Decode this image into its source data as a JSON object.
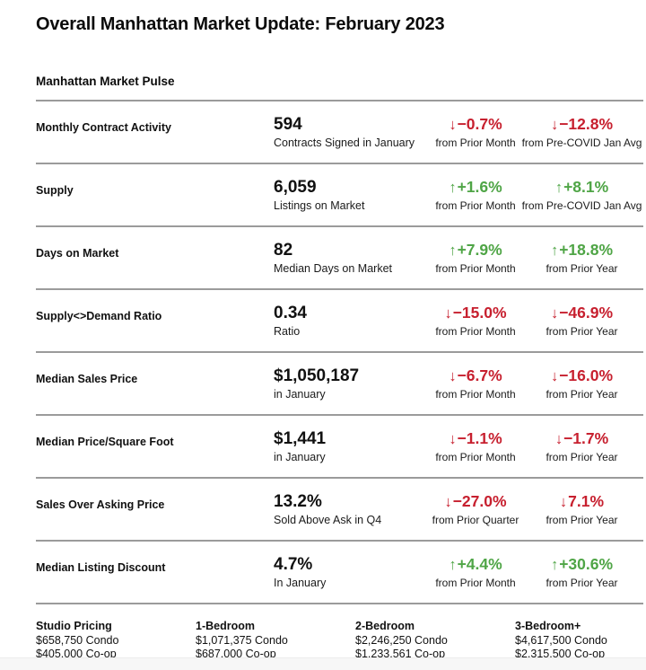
{
  "page": {
    "title": "Overall Manhattan Market Update: February 2023",
    "section_title": "Manhattan Market Pulse"
  },
  "colors": {
    "up": "#4fa546",
    "down": "#c7202f"
  },
  "metrics": [
    {
      "label": "Monthly Contract Activity",
      "value": "594",
      "value_sub": "Contracts Signed in January",
      "change1": {
        "direction": "down",
        "arrow": "↓",
        "pct": "−0.7%",
        "period": "from Prior Month"
      },
      "change2": {
        "direction": "down",
        "arrow": "↓",
        "pct": "−12.8%",
        "period": "from Pre-COVID Jan Avg"
      }
    },
    {
      "label": "Supply",
      "value": "6,059",
      "value_sub": "Listings on Market",
      "change1": {
        "direction": "up",
        "arrow": "↑",
        "pct": "+1.6%",
        "period": "from Prior Month"
      },
      "change2": {
        "direction": "up",
        "arrow": "↑",
        "pct": "+8.1%",
        "period": "from Pre-COVID Jan Avg"
      }
    },
    {
      "label": "Days on Market",
      "value": "82",
      "value_sub": "Median Days on Market",
      "change1": {
        "direction": "up",
        "arrow": "↑",
        "pct": "+7.9%",
        "period": "from Prior Month"
      },
      "change2": {
        "direction": "up",
        "arrow": "↑",
        "pct": "+18.8%",
        "period": "from Prior Year"
      }
    },
    {
      "label": "Supply<>Demand Ratio",
      "value": "0.34",
      "value_sub": "Ratio",
      "change1": {
        "direction": "down",
        "arrow": "↓",
        "pct": "−15.0%",
        "period": "from Prior Month"
      },
      "change2": {
        "direction": "down",
        "arrow": "↓",
        "pct": "−46.9%",
        "period": "from Prior Year"
      }
    },
    {
      "label": "Median Sales Price",
      "value": "$1,050,187",
      "value_sub": "in January",
      "change1": {
        "direction": "down",
        "arrow": "↓",
        "pct": "−6.7%",
        "period": "from Prior Month"
      },
      "change2": {
        "direction": "down",
        "arrow": "↓",
        "pct": "−16.0%",
        "period": "from Prior Year"
      }
    },
    {
      "label": "Median Price/Square Foot",
      "value": "$1,441",
      "value_sub": "in January",
      "change1": {
        "direction": "down",
        "arrow": "↓",
        "pct": "−1.1%",
        "period": "from Prior Month"
      },
      "change2": {
        "direction": "down",
        "arrow": "↓",
        "pct": "−1.7%",
        "period": "from Prior Year"
      }
    },
    {
      "label": "Sales Over Asking Price",
      "value": "13.2%",
      "value_sub": "Sold Above Ask in Q4",
      "change1": {
        "direction": "down",
        "arrow": "↓",
        "pct": "−27.0%",
        "period": "from Prior Quarter"
      },
      "change2": {
        "direction": "down",
        "arrow": "↓",
        "pct": "7.1%",
        "period": "from Prior Year"
      }
    },
    {
      "label": "Median Listing Discount",
      "value": "4.7%",
      "value_sub": "In January",
      "change1": {
        "direction": "up",
        "arrow": "↑",
        "pct": "+4.4%",
        "period": "from Prior Month"
      },
      "change2": {
        "direction": "up",
        "arrow": "↑",
        "pct": "+30.6%",
        "period": "from Prior Year"
      }
    }
  ],
  "pricing": [
    {
      "label": "Studio Pricing",
      "condo": "$658,750 Condo",
      "coop": "$405,000 Co-op"
    },
    {
      "label": "1-Bedroom",
      "condo": "$1,071,375 Condo",
      "coop": "$687,000 Co-op"
    },
    {
      "label": "2-Bedroom",
      "condo": "$2,246,250 Condo",
      "coop": "$1,233,561 Co-op"
    },
    {
      "label": "3-Bedroom+",
      "condo": "$4,617,500 Condo",
      "coop": "$2,315,500 Co-op"
    }
  ]
}
